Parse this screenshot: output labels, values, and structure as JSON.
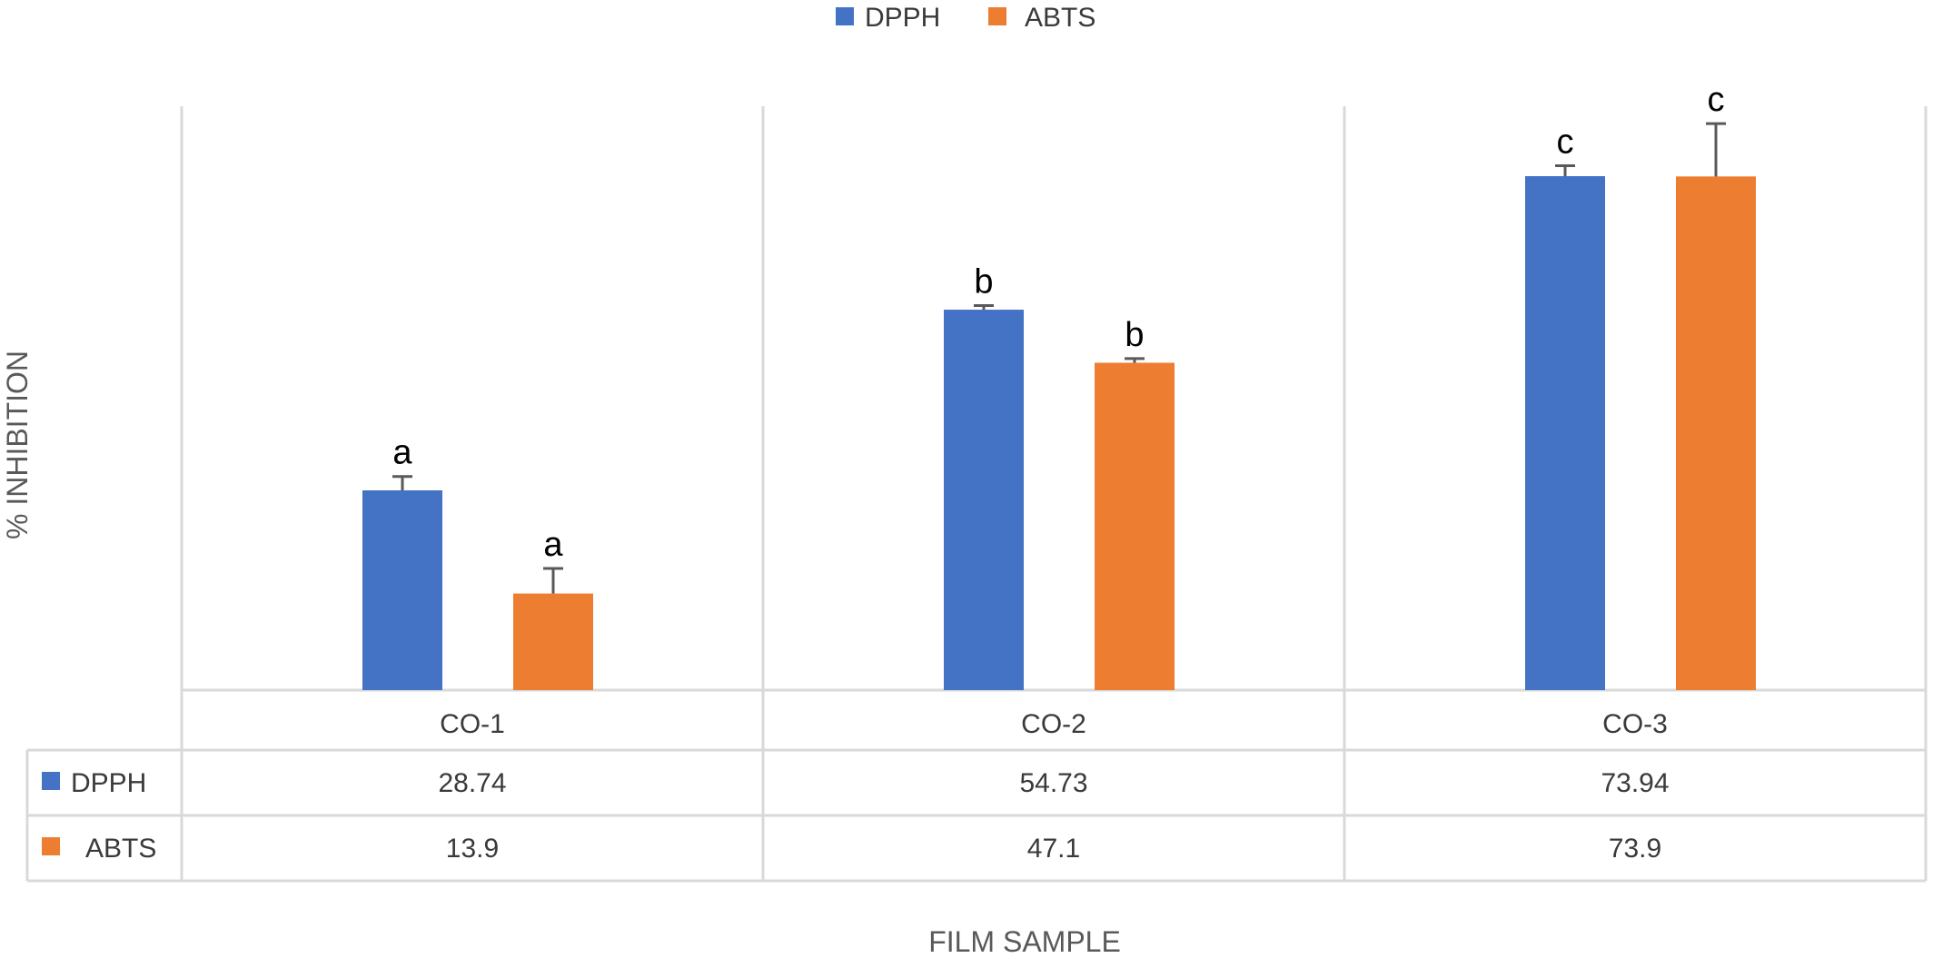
{
  "chart_data": {
    "type": "bar",
    "title": "",
    "xlabel": "FILM SAMPLE",
    "ylabel": "% INHIBITION",
    "categories": [
      "CO-1",
      "CO-2",
      "CO-3"
    ],
    "ylim": [
      0,
      84
    ],
    "grid": false,
    "legend_position": "top",
    "series": [
      {
        "name": "DPPH",
        "color": "#4472c4",
        "values": [
          28.74,
          54.73,
          73.94
        ],
        "value_labels": [
          "28.74",
          "54.73",
          "73.94"
        ],
        "error": [
          2.0,
          0.6,
          1.5
        ],
        "significance": [
          "a",
          "b",
          "c"
        ]
      },
      {
        "name": "ABTS",
        "color": "#ed7d31",
        "values": [
          13.9,
          47.1,
          73.9
        ],
        "value_labels": [
          "13.9",
          "47.1",
          "73.9"
        ],
        "error": [
          3.6,
          0.6,
          7.6
        ],
        "significance": [
          "a",
          "b",
          "c"
        ]
      }
    ],
    "data_table": true
  }
}
